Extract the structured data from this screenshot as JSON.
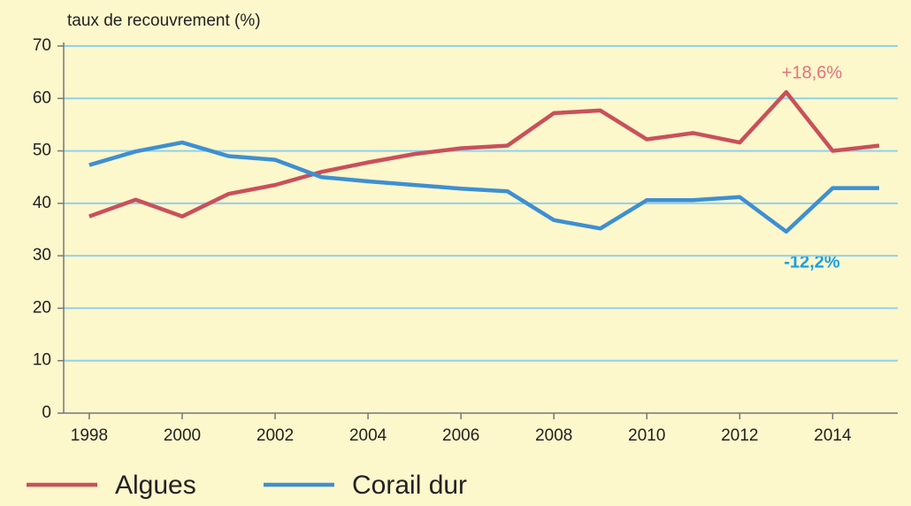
{
  "chart_data": {
    "type": "line",
    "y_label": "taux de recouvrement (%)",
    "x": [
      1998,
      1999,
      2000,
      2001,
      2002,
      2003,
      2004,
      2005,
      2006,
      2007,
      2008,
      2009,
      2010,
      2011,
      2012,
      2013,
      2014,
      2015
    ],
    "series": [
      {
        "name": "Algues",
        "color": "#c9505a",
        "values": [
          37.5,
          40.7,
          37.5,
          41.8,
          43.5,
          46,
          47.8,
          49.4,
          50.5,
          51,
          57.2,
          57.7,
          52.2,
          53.4,
          51.6,
          61.2,
          50,
          51
        ]
      },
      {
        "name": "Corail dur",
        "color": "#3e8fd2",
        "values": [
          47.3,
          49.9,
          51.6,
          49,
          48.3,
          45,
          44.2,
          43.5,
          42.8,
          42.3,
          36.8,
          35.2,
          40.6,
          40.6,
          41.2,
          34.6,
          42.9,
          42.9
        ]
      }
    ],
    "annotations": [
      {
        "text": "+18,6%",
        "color": "#e5717b"
      },
      {
        "text": "-12,2%",
        "color": "#1a9fe0"
      }
    ],
    "xlim": [
      1997.45,
      2015.4
    ],
    "xticks": [
      1998,
      2000,
      2002,
      2004,
      2006,
      2008,
      2010,
      2012,
      2014
    ],
    "ylim": [
      0,
      70
    ],
    "yticks": [
      0,
      10,
      20,
      30,
      40,
      50,
      60,
      70
    ],
    "grid": true
  }
}
